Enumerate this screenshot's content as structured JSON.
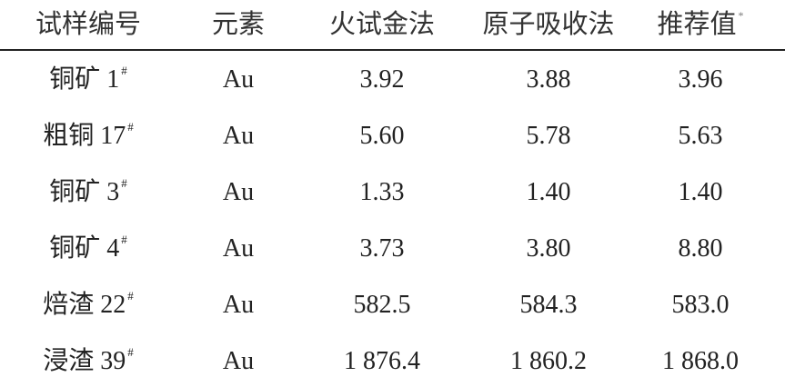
{
  "table": {
    "headers": [
      "试样编号",
      "元素",
      "火试金法",
      "原子吸收法",
      "推荐值"
    ],
    "header_note_mark": "*",
    "rows": [
      {
        "sample": "铜矿 1",
        "mark": "#",
        "element": "Au",
        "fire_assay": "3.92",
        "aas": "3.88",
        "recommended": "3.96"
      },
      {
        "sample": "粗铜 17",
        "mark": "#",
        "element": "Au",
        "fire_assay": "5.60",
        "aas": "5.78",
        "recommended": "5.63"
      },
      {
        "sample": "铜矿 3",
        "mark": "#",
        "element": "Au",
        "fire_assay": "1.33",
        "aas": "1.40",
        "recommended": "1.40"
      },
      {
        "sample": "铜矿 4",
        "mark": "#",
        "element": "Au",
        "fire_assay": "3.73",
        "aas": "3.80",
        "recommended": "8.80"
      },
      {
        "sample": "焙渣 22",
        "mark": "#",
        "element": "Au",
        "fire_assay": "582.5",
        "aas": "584.3",
        "recommended": "583.0"
      },
      {
        "sample": "浸渣 39",
        "mark": "#",
        "element": "Au",
        "fire_assay": "1 876.4",
        "aas": "1 860.2",
        "recommended": "1 868.0"
      }
    ]
  }
}
